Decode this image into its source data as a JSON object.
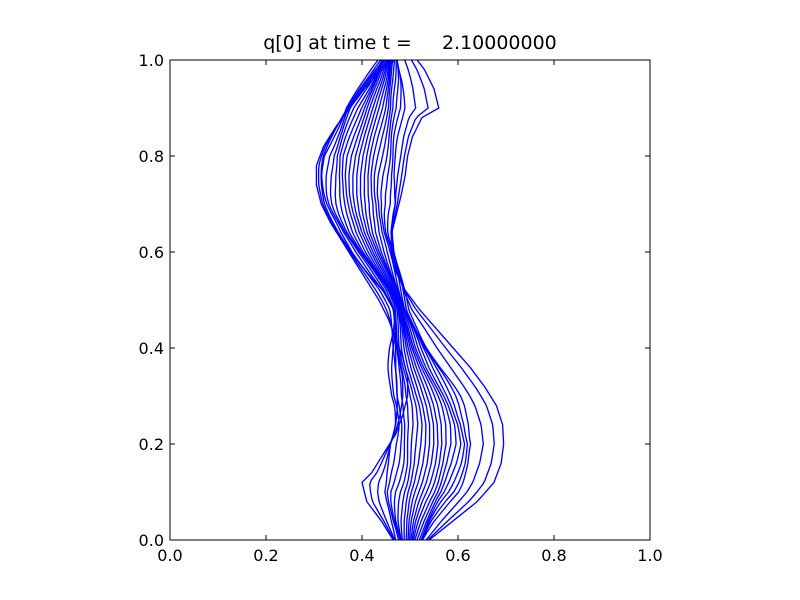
{
  "chart_data": {
    "type": "contour",
    "title": "q[0] at time t =     2.10000000",
    "xlabel": "",
    "ylabel": "",
    "xlim": [
      0.0,
      1.0
    ],
    "ylim": [
      0.0,
      1.0
    ],
    "x_ticks": [
      "0.0",
      "0.2",
      "0.4",
      "0.6",
      "0.8",
      "1.0"
    ],
    "y_ticks": [
      "0.0",
      "0.2",
      "0.4",
      "0.6",
      "0.8",
      "1.0"
    ],
    "grid": false,
    "line_color": "#0000ff",
    "levels": 20,
    "centerline": [
      [
        0.5,
        0.0
      ],
      [
        0.505,
        0.04
      ],
      [
        0.515,
        0.08
      ],
      [
        0.53,
        0.12
      ],
      [
        0.54,
        0.16
      ],
      [
        0.545,
        0.2
      ],
      [
        0.545,
        0.24
      ],
      [
        0.538,
        0.28
      ],
      [
        0.525,
        0.32
      ],
      [
        0.51,
        0.36
      ],
      [
        0.498,
        0.4
      ],
      [
        0.49,
        0.44
      ],
      [
        0.48,
        0.48
      ],
      [
        0.465,
        0.52
      ],
      [
        0.445,
        0.56
      ],
      [
        0.425,
        0.6
      ],
      [
        0.408,
        0.64
      ],
      [
        0.398,
        0.68
      ],
      [
        0.393,
        0.72
      ],
      [
        0.393,
        0.76
      ],
      [
        0.398,
        0.8
      ],
      [
        0.408,
        0.84
      ],
      [
        0.42,
        0.88
      ],
      [
        0.432,
        0.92
      ],
      [
        0.445,
        0.96
      ],
      [
        0.455,
        1.0
      ]
    ],
    "half_width_core": [
      [
        0.0,
        0.03
      ],
      [
        0.1,
        0.075
      ],
      [
        0.2,
        0.085
      ],
      [
        0.3,
        0.07
      ],
      [
        0.4,
        0.04
      ],
      [
        0.48,
        0.015
      ],
      [
        0.52,
        0.02
      ],
      [
        0.6,
        0.045
      ],
      [
        0.7,
        0.07
      ],
      [
        0.8,
        0.075
      ],
      [
        0.9,
        0.06
      ],
      [
        1.0,
        0.02
      ]
    ],
    "outer_right_contour": [
      [
        0.54,
        0.0
      ],
      [
        0.59,
        0.04
      ],
      [
        0.64,
        0.08
      ],
      [
        0.675,
        0.12
      ],
      [
        0.69,
        0.16
      ],
      [
        0.695,
        0.2
      ],
      [
        0.693,
        0.24
      ],
      [
        0.68,
        0.28
      ],
      [
        0.655,
        0.32
      ],
      [
        0.625,
        0.36
      ],
      [
        0.59,
        0.4
      ],
      [
        0.555,
        0.44
      ],
      [
        0.52,
        0.48
      ],
      [
        0.49,
        0.52
      ],
      [
        0.47,
        0.56
      ],
      [
        0.46,
        0.6
      ],
      [
        0.462,
        0.64
      ],
      [
        0.472,
        0.68
      ],
      [
        0.482,
        0.72
      ],
      [
        0.49,
        0.76
      ],
      [
        0.495,
        0.8
      ],
      [
        0.505,
        0.84
      ],
      [
        0.525,
        0.88
      ],
      [
        0.56,
        0.9
      ],
      [
        0.55,
        0.94
      ],
      [
        0.53,
        0.98
      ],
      [
        0.515,
        1.0
      ]
    ],
    "outer_left_contour": [
      [
        0.465,
        0.0
      ],
      [
        0.44,
        0.04
      ],
      [
        0.41,
        0.08
      ],
      [
        0.4,
        0.12
      ],
      [
        0.42,
        0.14
      ],
      [
        0.445,
        0.18
      ],
      [
        0.47,
        0.22
      ],
      [
        0.485,
        0.26
      ],
      [
        0.495,
        0.3
      ],
      [
        0.495,
        0.34
      ],
      [
        0.485,
        0.38
      ],
      [
        0.47,
        0.42
      ],
      [
        0.455,
        0.46
      ],
      [
        0.435,
        0.5
      ],
      [
        0.41,
        0.54
      ],
      [
        0.385,
        0.58
      ],
      [
        0.36,
        0.62
      ],
      [
        0.335,
        0.66
      ],
      [
        0.315,
        0.7
      ],
      [
        0.305,
        0.74
      ],
      [
        0.305,
        0.78
      ],
      [
        0.32,
        0.82
      ],
      [
        0.345,
        0.86
      ],
      [
        0.375,
        0.9
      ],
      [
        0.405,
        0.94
      ],
      [
        0.44,
        0.98
      ],
      [
        0.47,
        1.0
      ]
    ]
  }
}
